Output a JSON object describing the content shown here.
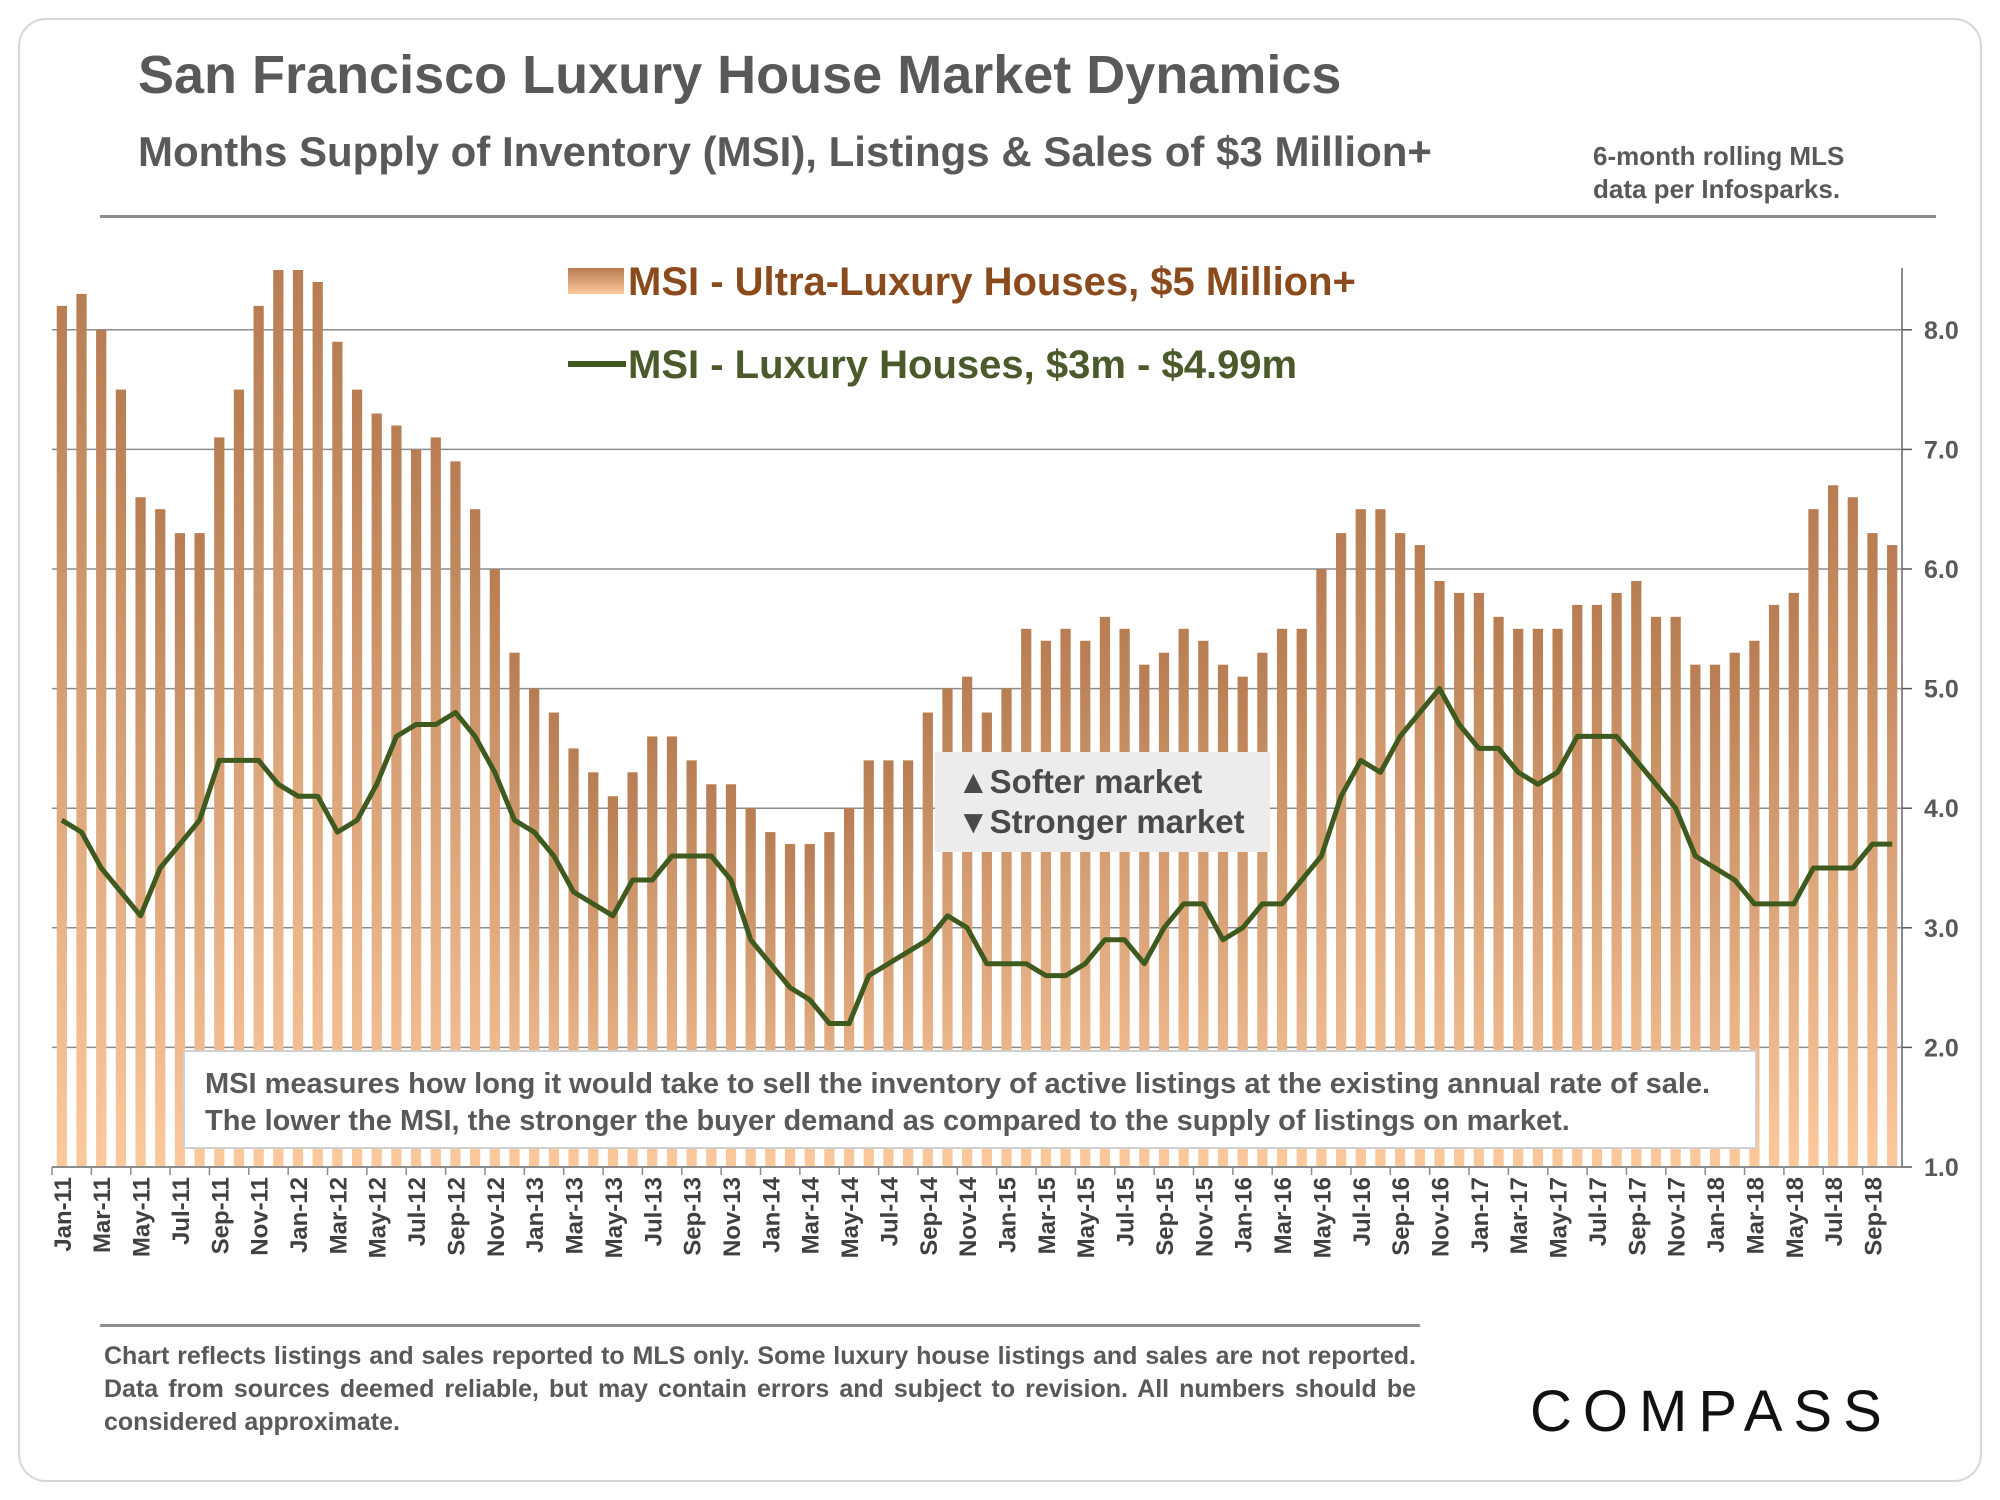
{
  "header": {
    "title": "San Francisco Luxury House Market Dynamics",
    "subtitle": "Months Supply of Inventory (MSI), Listings & Sales of $3 Million+",
    "source_note": "6-month rolling MLS data per Infosparks."
  },
  "annotations": {
    "softer": "▲Softer market",
    "stronger": "▼Stronger market",
    "msi_explanation": "MSI measures how long it would take to sell the inventory of active listings at the existing annual rate of sale. The lower the MSI, the stronger the buyer demand as compared to the supply of listings on market."
  },
  "footer": {
    "disclaimer": "Chart reflects listings and sales reported to MLS only. Some luxury house listings and sales are not reported. Data from sources deemed reliable, but may contain errors and subject to revision. All numbers should be considered approximate.",
    "logo_text": "COMPASS"
  },
  "colors": {
    "bar_top": "#b87d52",
    "bar_bottom": "#fcc99c",
    "line": "#3f5a1e",
    "grid": "#8c8c8c"
  },
  "chart_data": {
    "type": "bar+line",
    "title": "Months Supply of Inventory (MSI), Listings & Sales of $3 Million+",
    "categories": [
      "Jan-11",
      "Feb-11",
      "Mar-11",
      "Apr-11",
      "May-11",
      "Jun-11",
      "Jul-11",
      "Aug-11",
      "Sep-11",
      "Oct-11",
      "Nov-11",
      "Dec-11",
      "Jan-12",
      "Feb-12",
      "Mar-12",
      "Apr-12",
      "May-12",
      "Jun-12",
      "Jul-12",
      "Aug-12",
      "Sep-12",
      "Oct-12",
      "Nov-12",
      "Dec-12",
      "Jan-13",
      "Feb-13",
      "Mar-13",
      "Apr-13",
      "May-13",
      "Jun-13",
      "Jul-13",
      "Aug-13",
      "Sep-13",
      "Oct-13",
      "Nov-13",
      "Dec-13",
      "Jan-14",
      "Feb-14",
      "Mar-14",
      "Apr-14",
      "May-14",
      "Jun-14",
      "Jul-14",
      "Aug-14",
      "Sep-14",
      "Oct-14",
      "Nov-14",
      "Dec-14",
      "Jan-15",
      "Feb-15",
      "Mar-15",
      "Apr-15",
      "May-15",
      "Jun-15",
      "Jul-15",
      "Aug-15",
      "Sep-15",
      "Oct-15",
      "Nov-15",
      "Dec-15",
      "Jan-16",
      "Feb-16",
      "Mar-16",
      "Apr-16",
      "May-16",
      "Jun-16",
      "Jul-16",
      "Aug-16",
      "Sep-16",
      "Oct-16",
      "Nov-16",
      "Dec-16",
      "Jan-17",
      "Feb-17",
      "Mar-17",
      "Apr-17",
      "May-17",
      "Jun-17",
      "Jul-17",
      "Aug-17",
      "Sep-17",
      "Oct-17",
      "Nov-17",
      "Dec-17",
      "Jan-18",
      "Feb-18",
      "Mar-18",
      "Apr-18",
      "May-18",
      "Jun-18",
      "Jul-18",
      "Aug-18",
      "Sep-18",
      "Oct-18"
    ],
    "tick_labels": [
      "Jan-11",
      "Mar-11",
      "May-11",
      "Jul-11",
      "Sep-11",
      "Nov-11",
      "Jan-12",
      "Mar-12",
      "May-12",
      "Jul-12",
      "Sep-12",
      "Nov-12",
      "Jan-13",
      "Mar-13",
      "May-13",
      "Jul-13",
      "Sep-13",
      "Nov-13",
      "Jan-14",
      "Mar-14",
      "May-14",
      "Jul-14",
      "Sep-14",
      "Nov-14",
      "Jan-15",
      "Mar-15",
      "May-15",
      "Jul-15",
      "Sep-15",
      "Nov-15",
      "Jan-16",
      "Mar-16",
      "May-16",
      "Jul-16",
      "Sep-16",
      "Nov-16",
      "Jan-17",
      "Mar-17",
      "May-17",
      "Jul-17",
      "Sep-17",
      "Nov-17",
      "Jan-18",
      "Mar-18",
      "May-18",
      "Jul-18",
      "Sep-18"
    ],
    "series": [
      {
        "name": "MSI - Ultra-Luxury Houses, $5 Million+",
        "kind": "bar",
        "values": [
          8.2,
          8.3,
          8.0,
          7.5,
          6.6,
          6.5,
          6.3,
          6.3,
          7.1,
          7.5,
          8.2,
          8.5,
          8.5,
          8.4,
          7.9,
          7.5,
          7.3,
          7.2,
          7.0,
          7.1,
          6.9,
          6.5,
          6.0,
          5.3,
          5.0,
          4.8,
          4.5,
          4.3,
          4.1,
          4.3,
          4.6,
          4.6,
          4.4,
          4.2,
          4.2,
          4.0,
          3.8,
          3.7,
          3.7,
          3.8,
          4.0,
          4.4,
          4.4,
          4.4,
          4.8,
          5.0,
          5.1,
          4.8,
          5.0,
          5.5,
          5.4,
          5.5,
          5.4,
          5.6,
          5.5,
          5.2,
          5.3,
          5.5,
          5.4,
          5.2,
          5.1,
          5.3,
          5.5,
          5.5,
          6.0,
          6.3,
          6.5,
          6.5,
          6.3,
          6.2,
          5.9,
          5.8,
          5.8,
          5.6,
          5.5,
          5.5,
          5.5,
          5.7,
          5.7,
          5.8,
          5.9,
          5.6,
          5.6,
          5.2,
          5.2,
          5.3,
          5.4,
          5.7,
          5.8,
          6.5,
          6.7,
          6.6,
          6.3,
          6.2
        ]
      },
      {
        "name": "MSI - Luxury Houses, $3m - $4.99m",
        "kind": "line",
        "values": [
          3.9,
          3.8,
          3.5,
          3.3,
          3.1,
          3.5,
          3.7,
          3.9,
          4.4,
          4.4,
          4.4,
          4.2,
          4.1,
          4.1,
          3.8,
          3.9,
          4.2,
          4.6,
          4.7,
          4.7,
          4.8,
          4.6,
          4.3,
          3.9,
          3.8,
          3.6,
          3.3,
          3.2,
          3.1,
          3.4,
          3.4,
          3.6,
          3.6,
          3.6,
          3.4,
          2.9,
          2.7,
          2.5,
          2.4,
          2.2,
          2.2,
          2.6,
          2.7,
          2.8,
          2.9,
          3.1,
          3.0,
          2.7,
          2.7,
          2.7,
          2.6,
          2.6,
          2.7,
          2.9,
          2.9,
          2.7,
          3.0,
          3.2,
          3.2,
          2.9,
          3.0,
          3.2,
          3.2,
          3.4,
          3.6,
          4.1,
          4.4,
          4.3,
          4.6,
          4.8,
          5.0,
          4.7,
          4.5,
          4.5,
          4.3,
          4.2,
          4.3,
          4.6,
          4.6,
          4.6,
          4.4,
          4.2,
          4.0,
          3.6,
          3.5,
          3.4,
          3.2,
          3.2,
          3.2,
          3.5,
          3.5,
          3.5,
          3.7,
          3.7
        ]
      }
    ],
    "y_ticks": [
      "1.0",
      "2.0",
      "3.0",
      "4.0",
      "5.0",
      "6.0",
      "7.0",
      "8.0"
    ],
    "ylim": [
      1.0,
      8.5
    ],
    "xlabel": "",
    "ylabel": "",
    "grid": true,
    "y_axis_side": "right",
    "legend_position": "top-center"
  }
}
